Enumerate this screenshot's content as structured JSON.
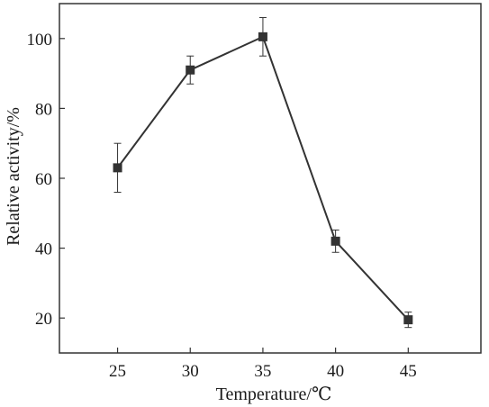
{
  "chart_data": {
    "type": "line",
    "title": "",
    "xlabel": "Temperature/℃",
    "ylabel": "Relative activity/%",
    "x": [
      25,
      30,
      35,
      40,
      45
    ],
    "series": [
      {
        "values": [
          63,
          91,
          100.5,
          42,
          19.5
        ],
        "errors": [
          7,
          4,
          5.5,
          3.2,
          2.2
        ],
        "marker": "square",
        "color": "#333333"
      }
    ],
    "xlim": [
      21,
      50
    ],
    "ylim": [
      10,
      110
    ],
    "xticks": [
      25,
      30,
      35,
      40,
      45
    ],
    "yticks": [
      20,
      40,
      60,
      80,
      100
    ],
    "grid": false,
    "legend": "none"
  }
}
